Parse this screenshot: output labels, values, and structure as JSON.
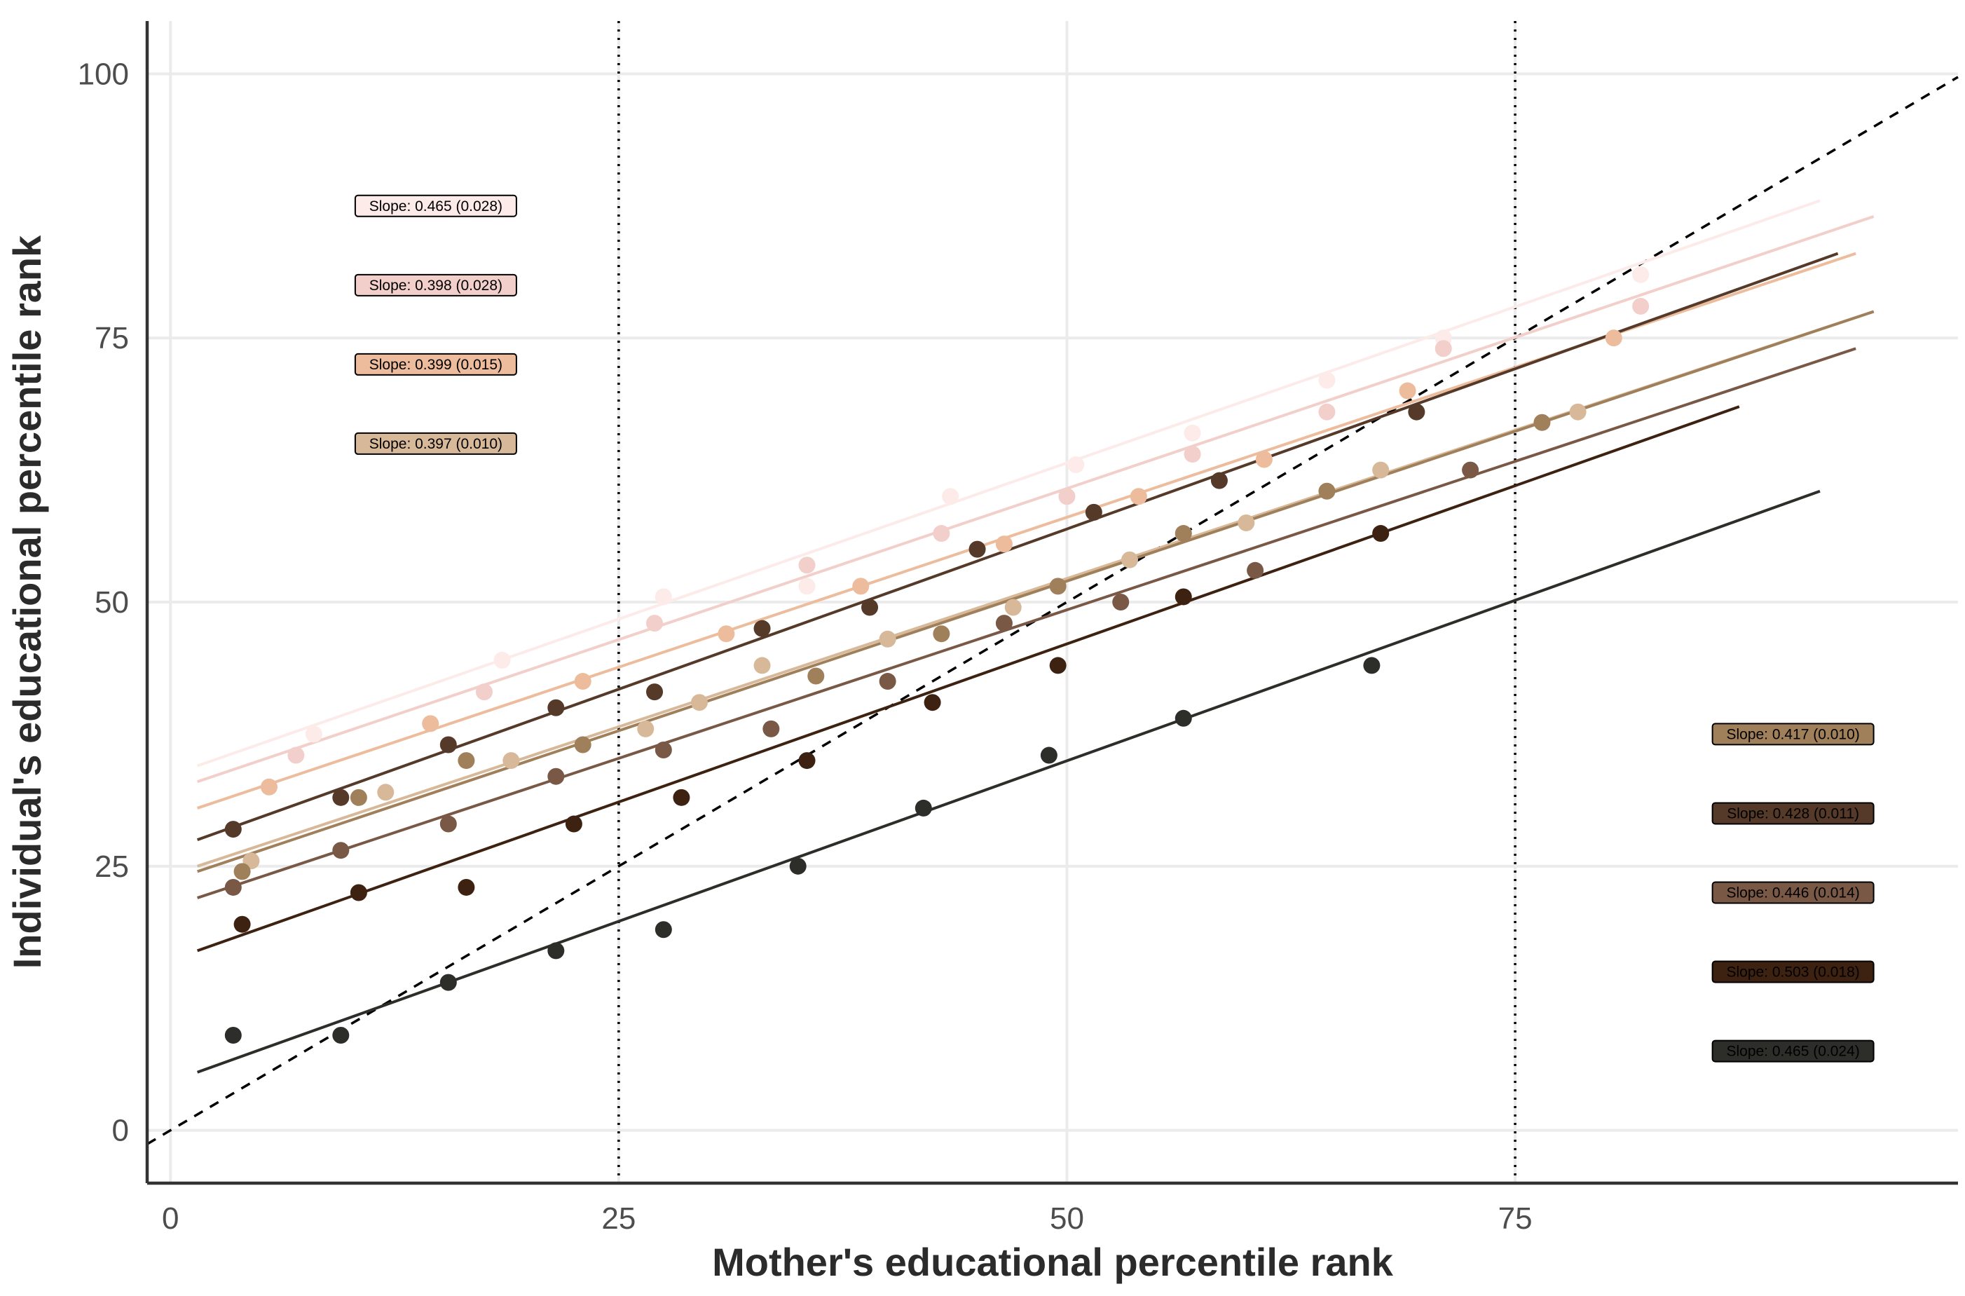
{
  "chart_data": {
    "type": "scatter",
    "title": "",
    "xlabel": "Mother's educational percentile rank",
    "ylabel": "Individual's educational percentile rank",
    "xlim": [
      -1.3,
      99.7
    ],
    "ylim": [
      -5,
      105
    ],
    "x_ticks": [
      "0",
      "25",
      "50",
      "75"
    ],
    "y_ticks": [
      "0",
      "25",
      "50",
      "75",
      "100"
    ],
    "grid": true,
    "reference_lines": {
      "diagonal_dashed": {
        "slope": 1,
        "intercept": 0
      },
      "vertical_dotted_x": [
        25,
        75
      ]
    },
    "series": [
      {
        "color": "#fcebe9",
        "slope_label": "Slope: 0.465 (0.028)",
        "fit": {
          "x": [
            1.5,
            92
          ],
          "y": [
            34.5,
            88
          ]
        },
        "points": [
          [
            8,
            37.5
          ],
          [
            18.5,
            44.5
          ],
          [
            27.5,
            50.5
          ],
          [
            35.5,
            51.5
          ],
          [
            43.5,
            60
          ],
          [
            50.5,
            63
          ],
          [
            57,
            66
          ],
          [
            64.5,
            71
          ],
          [
            71,
            75
          ],
          [
            82,
            81
          ]
        ]
      },
      {
        "color": "#f2cfca",
        "slope_label": "Slope: 0.398 (0.028)",
        "fit": {
          "x": [
            1.5,
            95
          ],
          "y": [
            33,
            86.5
          ]
        },
        "points": [
          [
            7,
            35.5
          ],
          [
            17.5,
            41.5
          ],
          [
            27,
            48
          ],
          [
            35.5,
            53.5
          ],
          [
            43,
            56.5
          ],
          [
            50,
            60
          ],
          [
            57,
            64
          ],
          [
            64.5,
            68
          ],
          [
            71,
            74
          ],
          [
            82,
            78
          ]
        ]
      },
      {
        "color": "#ecbc9d",
        "slope_label": "Slope: 0.399 (0.015)",
        "fit": {
          "x": [
            1.5,
            94
          ],
          "y": [
            30.5,
            83
          ]
        },
        "points": [
          [
            5.5,
            32.5
          ],
          [
            14.5,
            38.5
          ],
          [
            23,
            42.5
          ],
          [
            31,
            47
          ],
          [
            38.5,
            51.5
          ],
          [
            46.5,
            55.5
          ],
          [
            54,
            60
          ],
          [
            61,
            63.5
          ],
          [
            69,
            70
          ],
          [
            80.5,
            75
          ]
        ]
      },
      {
        "color": "#d7b99a",
        "slope_label": "Slope: 0.397 (0.010)",
        "fit": {
          "x": [
            1.5,
            95
          ],
          "y": [
            25,
            77.5
          ]
        },
        "points": [
          [
            4.5,
            25.5
          ],
          [
            12,
            32
          ],
          [
            19,
            35
          ],
          [
            26.5,
            38
          ],
          [
            29.5,
            40.5
          ],
          [
            33,
            44
          ],
          [
            40,
            46.5
          ],
          [
            47,
            49.5
          ],
          [
            53.5,
            54
          ],
          [
            60,
            57.5
          ],
          [
            67.5,
            62.5
          ],
          [
            78.5,
            68
          ]
        ]
      },
      {
        "color": "#a07f5b",
        "slope_label": "Slope: 0.417 (0.010)",
        "fit": {
          "x": [
            1.5,
            95
          ],
          "y": [
            24.5,
            77.5
          ]
        },
        "points": [
          [
            4,
            24.5
          ],
          [
            10.5,
            31.5
          ],
          [
            16.5,
            35
          ],
          [
            23,
            36.5
          ],
          [
            36,
            43
          ],
          [
            43,
            47
          ],
          [
            49.5,
            51.5
          ],
          [
            56.5,
            56.5
          ],
          [
            64.5,
            60.5
          ],
          [
            76.5,
            67
          ]
        ]
      },
      {
        "color": "#553929",
        "slope_label": "Slope: 0.428 (0.011)",
        "fit": {
          "x": [
            1.5,
            93
          ],
          "y": [
            27.5,
            83
          ]
        },
        "points": [
          [
            3.5,
            28.5
          ],
          [
            9.5,
            31.5
          ],
          [
            15.5,
            36.5
          ],
          [
            21.5,
            40
          ],
          [
            27,
            41.5
          ],
          [
            33,
            47.5
          ],
          [
            39,
            49.5
          ],
          [
            45,
            55
          ],
          [
            51.5,
            58.5
          ],
          [
            58.5,
            61.5
          ],
          [
            69.5,
            68
          ]
        ]
      },
      {
        "color": "#7a5846",
        "slope_label": "Slope: 0.446 (0.014)",
        "fit": {
          "x": [
            1.5,
            94
          ],
          "y": [
            22,
            74
          ]
        },
        "points": [
          [
            3.5,
            23
          ],
          [
            9.5,
            26.5
          ],
          [
            15.5,
            29
          ],
          [
            21.5,
            33.5
          ],
          [
            27.5,
            36
          ],
          [
            33.5,
            38
          ],
          [
            40,
            42.5
          ],
          [
            46.5,
            48
          ],
          [
            53,
            50
          ],
          [
            60.5,
            53
          ],
          [
            72.5,
            62.5
          ]
        ]
      },
      {
        "color": "#3d2212",
        "slope_label": "Slope: 0.503 (0.018)",
        "fit": {
          "x": [
            1.5,
            87.5
          ],
          "y": [
            17,
            68.5
          ]
        },
        "points": [
          [
            4,
            19.5
          ],
          [
            10.5,
            22.5
          ],
          [
            16.5,
            23
          ],
          [
            22.5,
            29
          ],
          [
            28.5,
            31.5
          ],
          [
            35.5,
            35
          ],
          [
            42.5,
            40.5
          ],
          [
            49.5,
            44
          ],
          [
            56.5,
            50.5
          ],
          [
            67.5,
            56.5
          ]
        ]
      },
      {
        "color": "#2d2d29",
        "slope_label": "Slope: 0.465 (0.024)",
        "fit": {
          "x": [
            1.5,
            92
          ],
          "y": [
            5.5,
            60.5
          ]
        },
        "points": [
          [
            3.5,
            9
          ],
          [
            9.5,
            9
          ],
          [
            15.5,
            14
          ],
          [
            21.5,
            17
          ],
          [
            27.5,
            19
          ],
          [
            35,
            25
          ],
          [
            42,
            30.5
          ],
          [
            49,
            35.5
          ],
          [
            56.5,
            39
          ],
          [
            67,
            44
          ]
        ]
      }
    ],
    "slope_labels_left": [
      "Slope: 0.465 (0.028)",
      "Slope: 0.398 (0.028)",
      "Slope: 0.399 (0.015)",
      "Slope: 0.397 (0.010)"
    ],
    "slope_labels_right": [
      "Slope: 0.417 (0.010)",
      "Slope: 0.428 (0.011)",
      "Slope: 0.446 (0.014)",
      "Slope: 0.503 (0.018)",
      "Slope: 0.465 (0.024)"
    ]
  }
}
